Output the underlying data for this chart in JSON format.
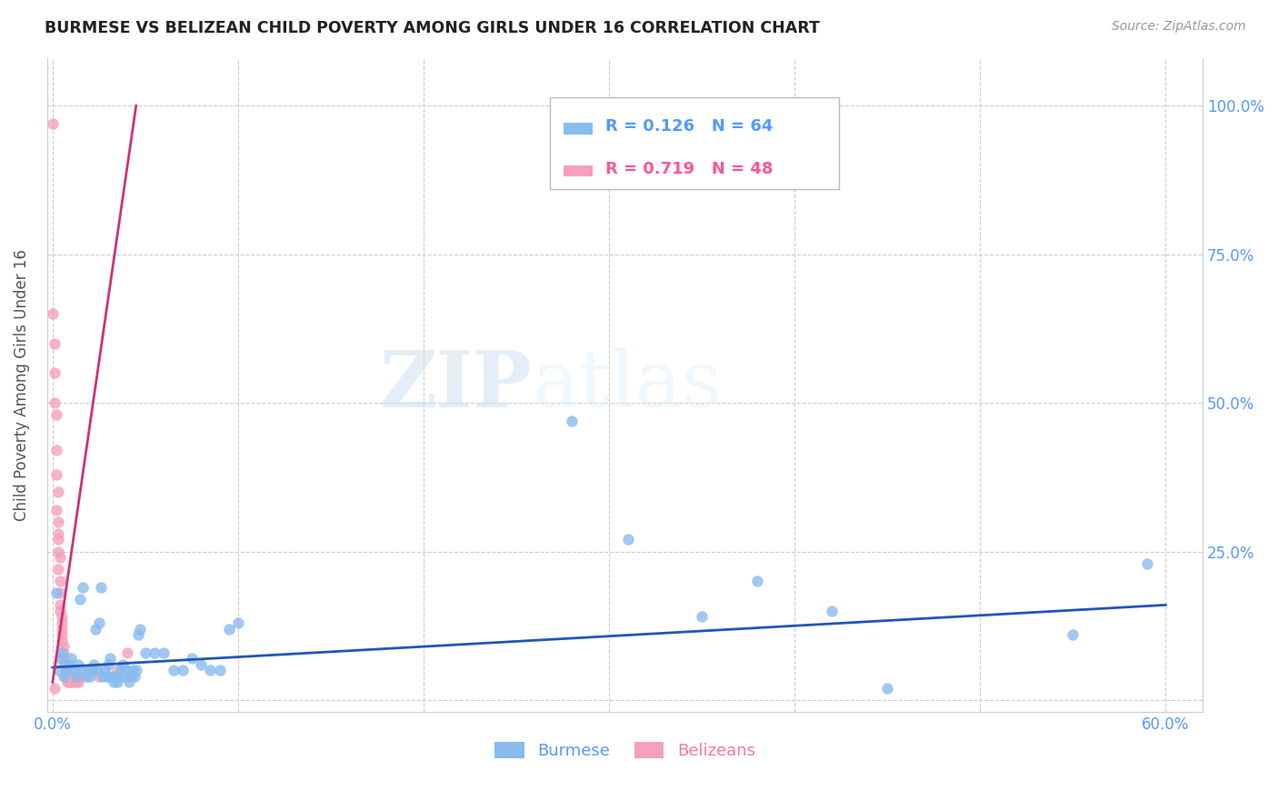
{
  "title": "BURMESE VS BELIZEAN CHILD POVERTY AMONG GIRLS UNDER 16 CORRELATION CHART",
  "source": "Source: ZipAtlas.com",
  "tick_color": "#5599ff",
  "ylabel": "Child Poverty Among Girls Under 16",
  "xlim": [
    -0.003,
    0.62
  ],
  "ylim": [
    -0.02,
    1.08
  ],
  "xticks": [
    0.0,
    0.1,
    0.2,
    0.3,
    0.4,
    0.5,
    0.6
  ],
  "xtick_labels": [
    "0.0%",
    "",
    "",
    "",
    "",
    "",
    "60.0%"
  ],
  "yticks": [
    0.0,
    0.25,
    0.5,
    0.75,
    1.0
  ],
  "ytick_labels": [
    "",
    "25.0%",
    "50.0%",
    "75.0%",
    "100.0%"
  ],
  "background_color": "#ffffff",
  "grid_color": "#cccccc",
  "watermark_zip": "ZIP",
  "watermark_atlas": "atlas",
  "burmese_color": "#88bbee",
  "belizean_color": "#f5a0bc",
  "line_blue": "#2255bb",
  "line_pink": "#cc3377",
  "burmese_scatter": [
    [
      0.002,
      0.18
    ],
    [
      0.004,
      0.07
    ],
    [
      0.005,
      0.08
    ],
    [
      0.007,
      0.06
    ],
    [
      0.008,
      0.05
    ],
    [
      0.009,
      0.06
    ],
    [
      0.01,
      0.07
    ],
    [
      0.012,
      0.05
    ],
    [
      0.013,
      0.04
    ],
    [
      0.014,
      0.06
    ],
    [
      0.015,
      0.17
    ],
    [
      0.016,
      0.19
    ],
    [
      0.017,
      0.05
    ],
    [
      0.018,
      0.04
    ],
    [
      0.019,
      0.05
    ],
    [
      0.02,
      0.04
    ],
    [
      0.021,
      0.05
    ],
    [
      0.022,
      0.06
    ],
    [
      0.023,
      0.12
    ],
    [
      0.024,
      0.05
    ],
    [
      0.025,
      0.13
    ],
    [
      0.026,
      0.19
    ],
    [
      0.027,
      0.04
    ],
    [
      0.028,
      0.05
    ],
    [
      0.029,
      0.04
    ],
    [
      0.03,
      0.06
    ],
    [
      0.031,
      0.07
    ],
    [
      0.032,
      0.04
    ],
    [
      0.033,
      0.03
    ],
    [
      0.034,
      0.04
    ],
    [
      0.035,
      0.03
    ],
    [
      0.036,
      0.04
    ],
    [
      0.037,
      0.05
    ],
    [
      0.038,
      0.06
    ],
    [
      0.039,
      0.04
    ],
    [
      0.04,
      0.05
    ],
    [
      0.041,
      0.03
    ],
    [
      0.042,
      0.04
    ],
    [
      0.043,
      0.05
    ],
    [
      0.044,
      0.04
    ],
    [
      0.045,
      0.05
    ],
    [
      0.046,
      0.11
    ],
    [
      0.047,
      0.12
    ],
    [
      0.05,
      0.08
    ],
    [
      0.055,
      0.08
    ],
    [
      0.06,
      0.08
    ],
    [
      0.065,
      0.05
    ],
    [
      0.07,
      0.05
    ],
    [
      0.075,
      0.07
    ],
    [
      0.08,
      0.06
    ],
    [
      0.085,
      0.05
    ],
    [
      0.09,
      0.05
    ],
    [
      0.095,
      0.12
    ],
    [
      0.1,
      0.13
    ],
    [
      0.28,
      0.47
    ],
    [
      0.31,
      0.27
    ],
    [
      0.35,
      0.14
    ],
    [
      0.38,
      0.2
    ],
    [
      0.42,
      0.15
    ],
    [
      0.45,
      0.02
    ],
    [
      0.55,
      0.11
    ],
    [
      0.59,
      0.23
    ],
    [
      0.003,
      0.05
    ],
    [
      0.006,
      0.04
    ]
  ],
  "belizean_scatter": [
    [
      0.0,
      0.97
    ],
    [
      0.001,
      0.6
    ],
    [
      0.001,
      0.55
    ],
    [
      0.002,
      0.48
    ],
    [
      0.002,
      0.42
    ],
    [
      0.002,
      0.38
    ],
    [
      0.003,
      0.35
    ],
    [
      0.003,
      0.3
    ],
    [
      0.003,
      0.28
    ],
    [
      0.003,
      0.25
    ],
    [
      0.003,
      0.22
    ],
    [
      0.004,
      0.2
    ],
    [
      0.004,
      0.18
    ],
    [
      0.004,
      0.16
    ],
    [
      0.004,
      0.15
    ],
    [
      0.005,
      0.14
    ],
    [
      0.005,
      0.13
    ],
    [
      0.005,
      0.12
    ],
    [
      0.005,
      0.11
    ],
    [
      0.005,
      0.1
    ],
    [
      0.006,
      0.09
    ],
    [
      0.006,
      0.08
    ],
    [
      0.006,
      0.07
    ],
    [
      0.007,
      0.06
    ],
    [
      0.007,
      0.05
    ],
    [
      0.007,
      0.04
    ],
    [
      0.008,
      0.03
    ],
    [
      0.008,
      0.04
    ],
    [
      0.009,
      0.03
    ],
    [
      0.009,
      0.04
    ],
    [
      0.01,
      0.03
    ],
    [
      0.01,
      0.04
    ],
    [
      0.011,
      0.03
    ],
    [
      0.012,
      0.04
    ],
    [
      0.013,
      0.03
    ],
    [
      0.014,
      0.03
    ],
    [
      0.015,
      0.04
    ],
    [
      0.02,
      0.05
    ],
    [
      0.025,
      0.04
    ],
    [
      0.03,
      0.04
    ],
    [
      0.035,
      0.05
    ],
    [
      0.04,
      0.08
    ],
    [
      0.001,
      0.02
    ],
    [
      0.0,
      0.65
    ],
    [
      0.001,
      0.5
    ],
    [
      0.002,
      0.32
    ],
    [
      0.003,
      0.27
    ],
    [
      0.004,
      0.24
    ]
  ],
  "burmese_trendline": [
    [
      0.0,
      0.055
    ],
    [
      0.6,
      0.16
    ]
  ],
  "belizean_trendline": [
    [
      0.0,
      0.03
    ],
    [
      0.045,
      1.0
    ]
  ]
}
